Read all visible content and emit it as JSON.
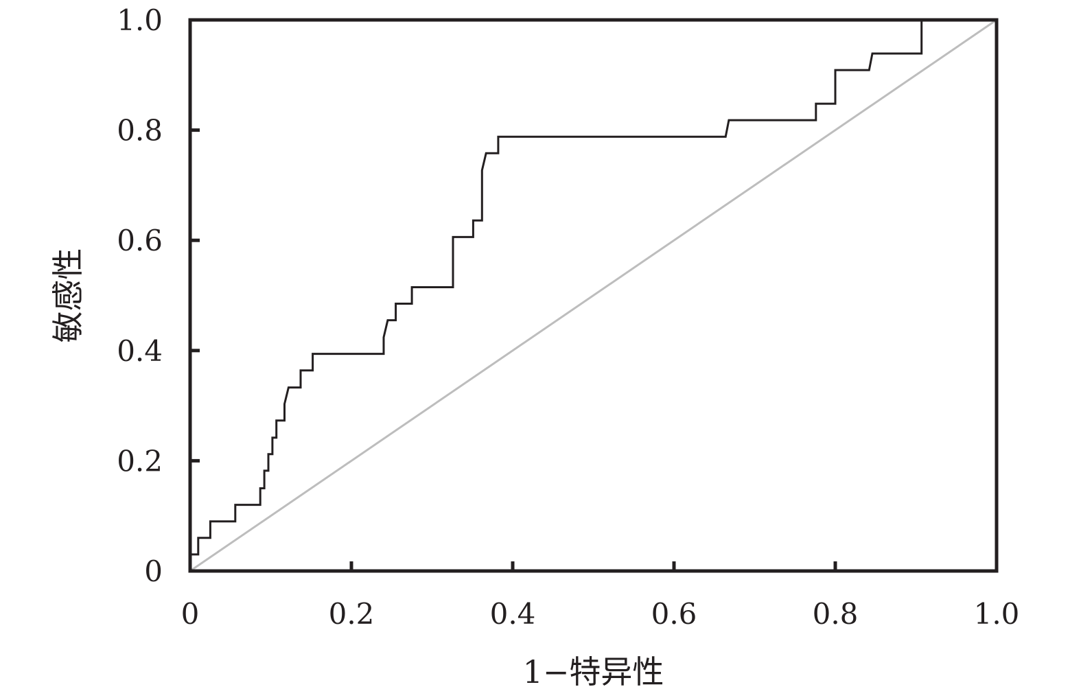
{
  "chart_data": {
    "type": "line",
    "xlabel": "1−特异性",
    "ylabel": "敏感性",
    "xlim": [
      0,
      1.0
    ],
    "ylim": [
      0,
      1.0
    ],
    "xticks": [
      0,
      0.2,
      0.4,
      0.6,
      0.8,
      1.0
    ],
    "yticks": [
      0,
      0.2,
      0.4,
      0.6,
      0.8,
      1.0
    ],
    "xtick_labels": [
      "0",
      "0.2",
      "0.4",
      "0.6",
      "0.8",
      "1.0"
    ],
    "ytick_labels": [
      "0",
      "0.2",
      "0.4",
      "0.6",
      "0.8",
      "1.0"
    ],
    "grid": false,
    "series": [
      {
        "role": "roc-curve",
        "color": "#231f20",
        "points": [
          [
            0,
            0.03
          ],
          [
            0.01,
            0.03
          ],
          [
            0.01,
            0.06
          ],
          [
            0.025,
            0.06
          ],
          [
            0.025,
            0.09
          ],
          [
            0.056,
            0.09
          ],
          [
            0.056,
            0.12
          ],
          [
            0.087,
            0.12
          ],
          [
            0.087,
            0.15
          ],
          [
            0.092,
            0.15
          ],
          [
            0.092,
            0.182
          ],
          [
            0.097,
            0.182
          ],
          [
            0.097,
            0.212
          ],
          [
            0.102,
            0.212
          ],
          [
            0.102,
            0.242
          ],
          [
            0.107,
            0.242
          ],
          [
            0.107,
            0.273
          ],
          [
            0.117,
            0.273
          ],
          [
            0.117,
            0.303
          ],
          [
            0.122,
            0.333
          ],
          [
            0.137,
            0.333
          ],
          [
            0.137,
            0.364
          ],
          [
            0.152,
            0.364
          ],
          [
            0.152,
            0.394
          ],
          [
            0.24,
            0.394
          ],
          [
            0.24,
            0.424
          ],
          [
            0.245,
            0.455
          ],
          [
            0.255,
            0.455
          ],
          [
            0.255,
            0.485
          ],
          [
            0.275,
            0.485
          ],
          [
            0.275,
            0.515
          ],
          [
            0.326,
            0.515
          ],
          [
            0.326,
            0.606
          ],
          [
            0.351,
            0.606
          ],
          [
            0.351,
            0.636
          ],
          [
            0.362,
            0.636
          ],
          [
            0.362,
            0.727
          ],
          [
            0.367,
            0.758
          ],
          [
            0.382,
            0.758
          ],
          [
            0.382,
            0.788
          ],
          [
            0.664,
            0.788
          ],
          [
            0.668,
            0.818
          ],
          [
            0.776,
            0.818
          ],
          [
            0.776,
            0.848
          ],
          [
            0.8,
            0.848
          ],
          [
            0.8,
            0.909
          ],
          [
            0.842,
            0.909
          ],
          [
            0.846,
            0.939
          ],
          [
            0.907,
            0.939
          ],
          [
            0.907,
            1.0
          ]
        ]
      },
      {
        "role": "reference-line",
        "color": "#bdbdbd",
        "points": [
          [
            0,
            0
          ],
          [
            1.0,
            1.0
          ]
        ]
      }
    ]
  }
}
